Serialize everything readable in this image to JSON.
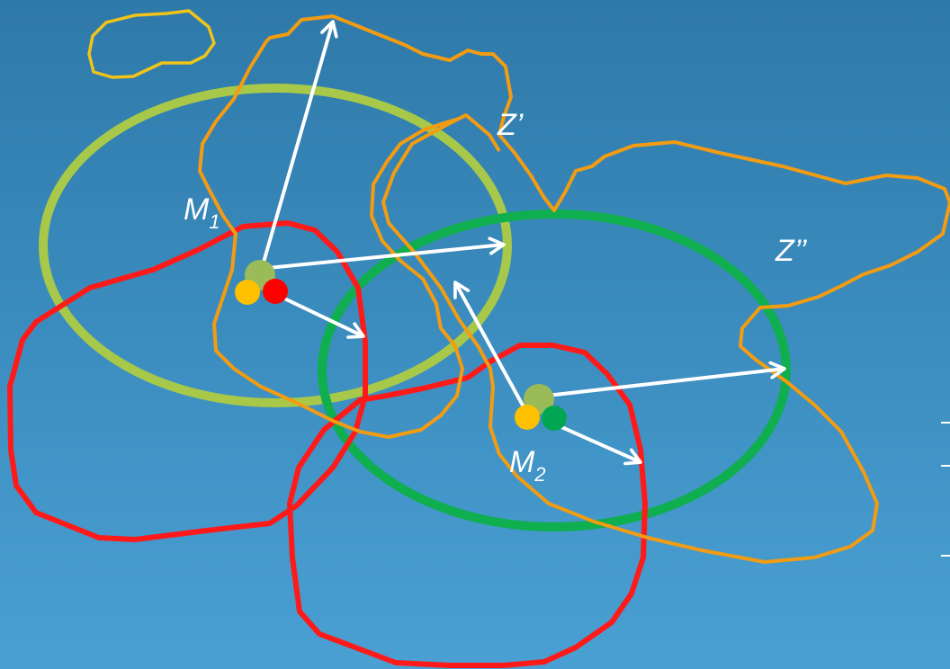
{
  "labels": {
    "m1": {
      "base": "M",
      "sub": "1"
    },
    "m2": {
      "base": "M",
      "sub": "2"
    },
    "z_prime": "Z’",
    "z_double_prime": "Z’’"
  },
  "colors": {
    "background_top": "#2e79a9",
    "background_bottom": "#4aa0d3",
    "small_contour": "#f0c419",
    "orange_contour": "#f39c12",
    "red_contour": "#ff1a1a",
    "ellipse_light_green": "#a8c84a",
    "ellipse_green": "#0fae4f",
    "arrow": "#ffffff",
    "dot_yellow": "#ffc000",
    "dot_red": "#ff0000",
    "dot_green": "#00a651",
    "dot_olive": "#9bbb59"
  },
  "icons": {
    "arrowhead": "arrow-head-icon"
  }
}
